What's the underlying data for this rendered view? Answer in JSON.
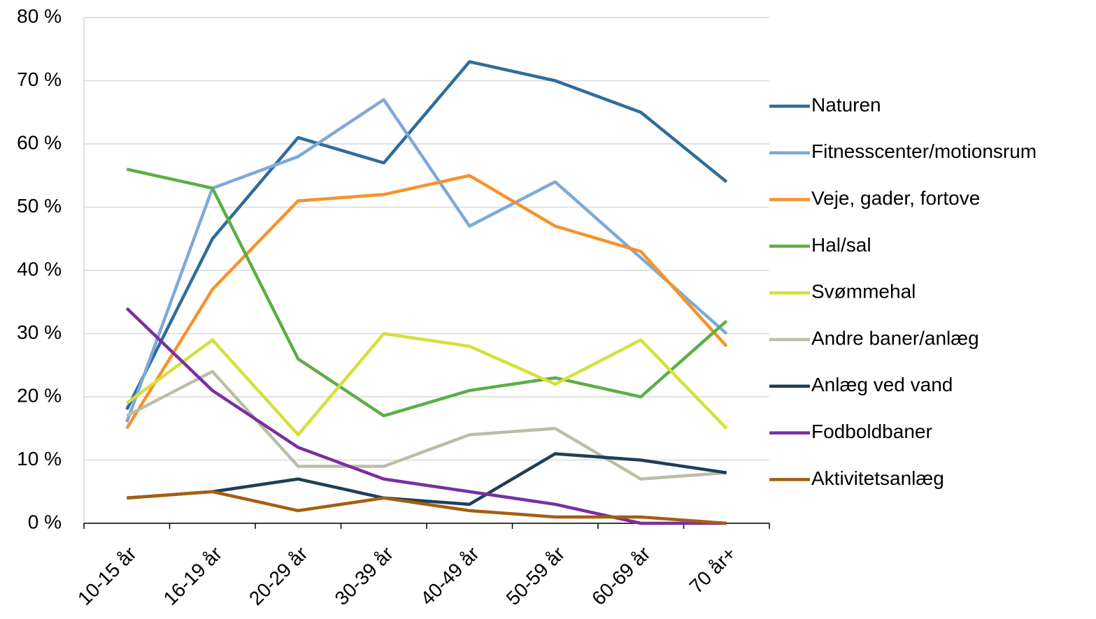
{
  "chart_data": {
    "type": "line",
    "categories": [
      "10-15 år",
      "16-19 år",
      "20-29 år",
      "30-39 år",
      "40-49 år",
      "50-59 år",
      "60-69 år",
      "70 år+"
    ],
    "series": [
      {
        "name": "Naturen",
        "color": "#2e6d9b",
        "values": [
          18,
          45,
          61,
          57,
          73,
          70,
          65,
          54
        ]
      },
      {
        "name": "Fitnesscenter/motionsrum",
        "color": "#7ea9d9",
        "values": [
          16,
          53,
          58,
          67,
          47,
          54,
          42,
          30
        ]
      },
      {
        "name": "Veje, gader, fortove",
        "color": "#f7922a",
        "values": [
          15,
          37,
          51,
          52,
          55,
          47,
          43,
          28
        ]
      },
      {
        "name": "Hal/sal",
        "color": "#5cae46",
        "values": [
          56,
          53,
          26,
          17,
          21,
          23,
          20,
          32
        ]
      },
      {
        "name": "Svømmehal",
        "color": "#d5e03c",
        "values": [
          19,
          29,
          14,
          30,
          28,
          22,
          29,
          15
        ]
      },
      {
        "name": "Andre baner/anlæg",
        "color": "#bdbda6",
        "values": [
          17,
          24,
          9,
          9,
          14,
          15,
          7,
          8
        ]
      },
      {
        "name": "Anlæg ved vand",
        "color": "#1e3f56",
        "values": [
          4,
          5,
          7,
          4,
          3,
          11,
          10,
          8
        ]
      },
      {
        "name": "Fodboldbaner",
        "color": "#7a2fa0",
        "values": [
          34,
          21,
          12,
          7,
          5,
          3,
          0,
          0
        ]
      },
      {
        "name": "Aktivitetsanlæg",
        "color": "#a45f10",
        "values": [
          4,
          5,
          2,
          4,
          2,
          1,
          1,
          0
        ]
      }
    ],
    "ylim": [
      0,
      80
    ],
    "yticks": [
      {
        "value": 0,
        "label": "0 %"
      },
      {
        "value": 10,
        "label": "10 %"
      },
      {
        "value": 20,
        "label": "20 %"
      },
      {
        "value": 30,
        "label": "30 %"
      },
      {
        "value": 40,
        "label": "40 %"
      },
      {
        "value": 50,
        "label": "50 %"
      },
      {
        "value": 60,
        "label": "60 %"
      },
      {
        "value": 70,
        "label": "70 %"
      },
      {
        "value": 80,
        "label": "80 %"
      }
    ],
    "grid": true,
    "legend": "right"
  }
}
